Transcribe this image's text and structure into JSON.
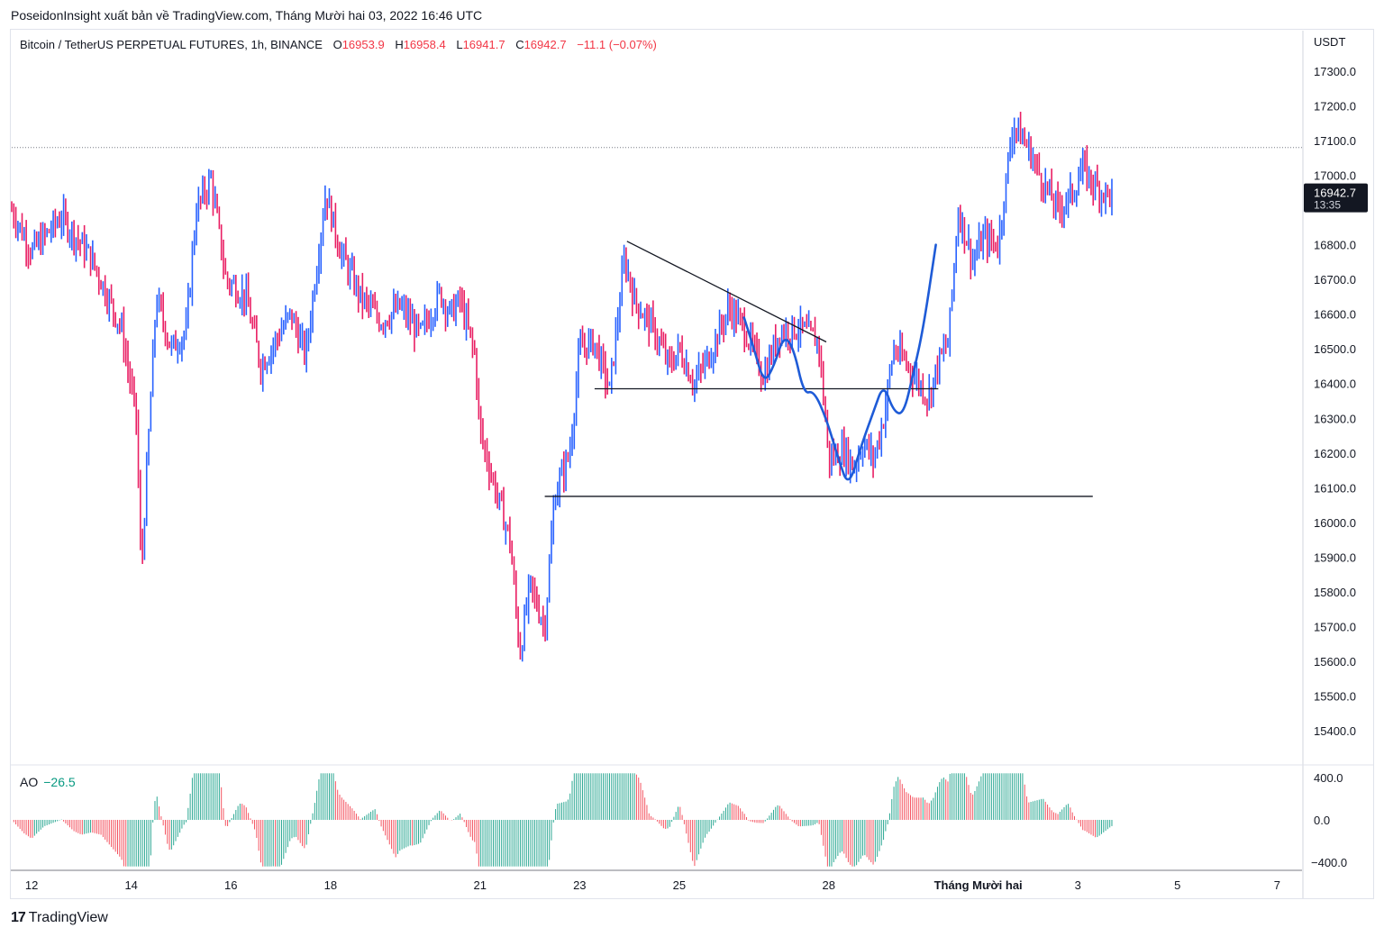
{
  "header": {
    "publisher": "PoseidonInsight xuất bản về TradingView.com, Tháng Mười hai 03, 2022 16:46 UTC"
  },
  "legend": {
    "symbol": "Bitcoin / TetherUS PERPETUAL FUTURES, 1h, BINANCE",
    "open_label": "O",
    "open": "16953.9",
    "high_label": "H",
    "high": "16958.4",
    "low_label": "L",
    "low": "16941.7",
    "close_label": "C",
    "close": "16942.7",
    "change": "−11.1 (−0.07%)"
  },
  "price_badge": {
    "price": "16942.7",
    "countdown": "13:35"
  },
  "ao": {
    "label": "AO",
    "value": "−26.5"
  },
  "branding": {
    "logo_text": "TradingView",
    "logo_mark": "17"
  },
  "colors": {
    "up": "#089981",
    "down": "#f23645",
    "candle_up": "#2962ff",
    "candle_down": "#e91e63",
    "drawing_blue": "#1e5bd7"
  },
  "chart_data": [
    {
      "type": "candlestick",
      "title": "Bitcoin / TetherUS PERPETUAL FUTURES, 1h, BINANCE",
      "currency": "USDT",
      "y_ticks": [
        17300,
        17200,
        17100,
        17000,
        16900,
        16800,
        16700,
        16600,
        16500,
        16400,
        16300,
        16200,
        16100,
        16000,
        15900,
        15800,
        15700,
        15600,
        15500,
        15400
      ],
      "y_tick_labels": [
        "17300.0",
        "17200.0",
        "17100.0",
        "17000.0",
        "",
        "16800.0",
        "16700.0",
        "16600.0",
        "16500.0",
        "16400.0",
        "16300.0",
        "16200.0",
        "16100.0",
        "16000.0",
        "15900.0",
        "15800.0",
        "15700.0",
        "15600.0",
        "15500.0",
        "15400.0"
      ],
      "ylim": [
        15330,
        17420
      ],
      "x_ticks": [
        {
          "label": "12",
          "day": 12
        },
        {
          "label": "14",
          "day": 14
        },
        {
          "label": "16",
          "day": 16
        },
        {
          "label": "18",
          "day": 18
        },
        {
          "label": "21",
          "day": 21
        },
        {
          "label": "23",
          "day": 23
        },
        {
          "label": "25",
          "day": 25
        },
        {
          "label": "28",
          "day": 28
        },
        {
          "label": "Tháng Mười hai",
          "day": 31
        },
        {
          "label": "3",
          "day": 33
        },
        {
          "label": "5",
          "day": 35
        },
        {
          "label": "7",
          "day": 37
        }
      ],
      "xlim_days": [
        11.6,
        37.5
      ],
      "last_price": 16942.7,
      "price_line": 17080,
      "path_points_day_price": [
        [
          11.6,
          16900
        ],
        [
          12.0,
          16780
        ],
        [
          12.6,
          16880
        ],
        [
          13.2,
          16760
        ],
        [
          13.8,
          16560
        ],
        [
          14.1,
          16300
        ],
        [
          14.2,
          15850
        ],
        [
          14.5,
          16650
        ],
        [
          14.8,
          16500
        ],
        [
          15.1,
          16550
        ],
        [
          15.3,
          16900
        ],
        [
          15.6,
          16990
        ],
        [
          15.9,
          16700
        ],
        [
          16.3,
          16650
        ],
        [
          16.6,
          16450
        ],
        [
          16.8,
          16500
        ],
        [
          17.2,
          16600
        ],
        [
          17.5,
          16480
        ],
        [
          17.9,
          16950
        ],
        [
          18.2,
          16780
        ],
        [
          18.6,
          16650
        ],
        [
          19.0,
          16580
        ],
        [
          19.4,
          16620
        ],
        [
          19.8,
          16540
        ],
        [
          20.2,
          16660
        ],
        [
          20.4,
          16600
        ],
        [
          20.6,
          16640
        ],
        [
          20.9,
          16480
        ],
        [
          21.0,
          16260
        ],
        [
          21.3,
          16100
        ],
        [
          21.6,
          15950
        ],
        [
          21.8,
          15620
        ],
        [
          22.0,
          15820
        ],
        [
          22.3,
          15700
        ],
        [
          22.5,
          16080
        ],
        [
          22.8,
          16200
        ],
        [
          23.0,
          16500
        ],
        [
          23.3,
          16520
        ],
        [
          23.6,
          16380
        ],
        [
          23.9,
          16760
        ],
        [
          24.1,
          16640
        ],
        [
          24.5,
          16550
        ],
        [
          24.8,
          16450
        ],
        [
          25.0,
          16500
        ],
        [
          25.3,
          16400
        ],
        [
          25.6,
          16480
        ],
        [
          26.0,
          16620
        ],
        [
          26.3,
          16560
        ],
        [
          26.7,
          16420
        ],
        [
          27.0,
          16550
        ],
        [
          27.4,
          16560
        ],
        [
          27.8,
          16520
        ],
        [
          28.0,
          16180
        ],
        [
          28.3,
          16210
        ],
        [
          28.5,
          16160
        ],
        [
          28.7,
          16230
        ],
        [
          28.9,
          16180
        ],
        [
          29.1,
          16300
        ],
        [
          29.3,
          16500
        ],
        [
          29.6,
          16450
        ],
        [
          30.0,
          16360
        ],
        [
          30.2,
          16460
        ],
        [
          30.4,
          16520
        ],
        [
          30.6,
          16900
        ],
        [
          30.9,
          16750
        ],
        [
          31.1,
          16820
        ],
        [
          31.4,
          16800
        ],
        [
          31.7,
          17150
        ],
        [
          32.0,
          17080
        ],
        [
          32.3,
          16980
        ],
        [
          32.6,
          16900
        ],
        [
          32.9,
          16950
        ],
        [
          33.1,
          17020
        ],
        [
          33.4,
          16960
        ],
        [
          33.7,
          16940
        ]
      ],
      "trendlines": [
        {
          "from": [
            23.95,
            16810
          ],
          "to": [
            27.95,
            16520
          ]
        },
        {
          "from": [
            23.3,
            16385
          ],
          "to": [
            30.2,
            16385
          ]
        },
        {
          "from": [
            22.3,
            16075
          ],
          "to": [
            33.3,
            16075
          ]
        }
      ],
      "blue_drawing": [
        [
          26.3,
          16590
        ],
        [
          26.5,
          16500
        ],
        [
          26.7,
          16400
        ],
        [
          26.9,
          16450
        ],
        [
          27.1,
          16540
        ],
        [
          27.3,
          16500
        ],
        [
          27.5,
          16370
        ],
        [
          27.7,
          16380
        ],
        [
          27.95,
          16300
        ],
        [
          28.2,
          16180
        ],
        [
          28.4,
          16100
        ],
        [
          28.65,
          16220
        ],
        [
          28.9,
          16320
        ],
        [
          29.1,
          16400
        ],
        [
          29.3,
          16320
        ],
        [
          29.5,
          16310
        ],
        [
          29.7,
          16430
        ],
        [
          29.9,
          16560
        ],
        [
          30.15,
          16800
        ]
      ]
    },
    {
      "type": "bar",
      "title": "AO",
      "value": -26.5,
      "y_ticks": [
        400,
        0,
        -400
      ],
      "y_tick_labels": [
        "400.0",
        "0.0",
        "−400.0"
      ],
      "ylim": [
        -470,
        470
      ]
    }
  ]
}
